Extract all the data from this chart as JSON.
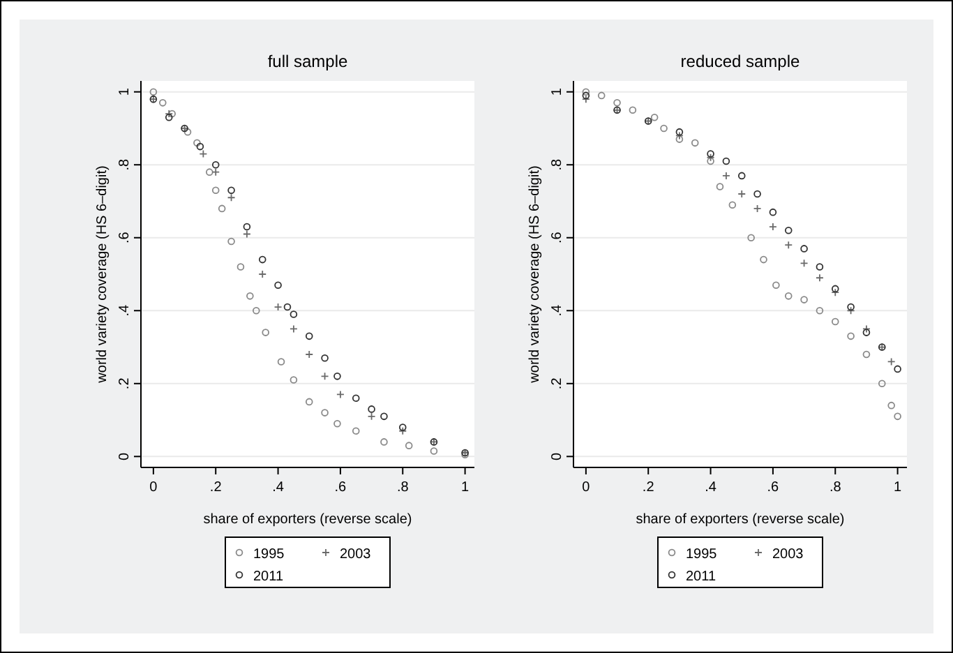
{
  "chart_data": [
    {
      "type": "scatter",
      "title": "full sample",
      "xlabel": "share of exporters (reverse scale)",
      "ylabel": "world variety coverage (HS 6–digit)",
      "xlim": [
        -0.04,
        1.03
      ],
      "ylim": [
        -0.03,
        1.03
      ],
      "xticks": [
        {
          "value": 0,
          "label": "0"
        },
        {
          "value": 0.2,
          "label": ".2"
        },
        {
          "value": 0.4,
          "label": ".4"
        },
        {
          "value": 0.6,
          "label": ".6"
        },
        {
          "value": 0.8,
          "label": ".8"
        },
        {
          "value": 1,
          "label": "1"
        }
      ],
      "yticks": [
        {
          "value": 0,
          "label": "0"
        },
        {
          "value": 0.2,
          "label": ".2"
        },
        {
          "value": 0.4,
          "label": ".4"
        },
        {
          "value": 0.6,
          "label": ".6"
        },
        {
          "value": 0.8,
          "label": ".8"
        },
        {
          "value": 1,
          "label": "1"
        }
      ],
      "grid": "y",
      "legend": "bottom",
      "series": [
        {
          "name": "1995",
          "color": "#8a8a8a",
          "marker": "circle",
          "x": [
            0,
            0.03,
            0.06,
            0.11,
            0.14,
            0.18,
            0.2,
            0.22,
            0.25,
            0.28,
            0.31,
            0.33,
            0.36,
            0.41,
            0.45,
            0.5,
            0.55,
            0.59,
            0.65,
            0.74,
            0.82,
            0.9,
            1
          ],
          "values": [
            1,
            0.97,
            0.94,
            0.89,
            0.86,
            0.78,
            0.73,
            0.68,
            0.59,
            0.52,
            0.44,
            0.4,
            0.34,
            0.26,
            0.21,
            0.15,
            0.12,
            0.09,
            0.07,
            0.04,
            0.03,
            0.015,
            0.005
          ]
        },
        {
          "name": "2003",
          "color": "#6a6a6a",
          "marker": "cross",
          "x": [
            0,
            0.05,
            0.1,
            0.16,
            0.2,
            0.25,
            0.3,
            0.35,
            0.4,
            0.45,
            0.5,
            0.55,
            0.6,
            0.7,
            0.8,
            0.9,
            1
          ],
          "values": [
            0.98,
            0.94,
            0.9,
            0.83,
            0.78,
            0.71,
            0.61,
            0.5,
            0.41,
            0.35,
            0.28,
            0.22,
            0.17,
            0.11,
            0.07,
            0.04,
            0.01
          ]
        },
        {
          "name": "2011",
          "color": "#333333",
          "marker": "circle",
          "x": [
            0,
            0.05,
            0.1,
            0.15,
            0.2,
            0.25,
            0.3,
            0.35,
            0.4,
            0.43,
            0.45,
            0.5,
            0.55,
            0.59,
            0.65,
            0.7,
            0.74,
            0.8,
            0.9,
            1
          ],
          "values": [
            0.98,
            0.93,
            0.9,
            0.85,
            0.8,
            0.73,
            0.63,
            0.54,
            0.47,
            0.41,
            0.39,
            0.33,
            0.27,
            0.22,
            0.16,
            0.13,
            0.11,
            0.08,
            0.04,
            0.01
          ]
        }
      ]
    },
    {
      "type": "scatter",
      "title": "reduced sample",
      "xlabel": "share of exporters (reverse scale)",
      "ylabel": "world variety coverage (HS 6–digit)",
      "xlim": [
        -0.04,
        1.03
      ],
      "ylim": [
        -0.03,
        1.03
      ],
      "xticks": [
        {
          "value": 0,
          "label": "0"
        },
        {
          "value": 0.2,
          "label": ".2"
        },
        {
          "value": 0.4,
          "label": ".4"
        },
        {
          "value": 0.6,
          "label": ".6"
        },
        {
          "value": 0.8,
          "label": ".8"
        },
        {
          "value": 1,
          "label": "1"
        }
      ],
      "yticks": [
        {
          "value": 0,
          "label": "0"
        },
        {
          "value": 0.2,
          "label": ".2"
        },
        {
          "value": 0.4,
          "label": ".4"
        },
        {
          "value": 0.6,
          "label": ".6"
        },
        {
          "value": 0.8,
          "label": ".8"
        },
        {
          "value": 1,
          "label": "1"
        }
      ],
      "grid": "y",
      "legend": "bottom",
      "series": [
        {
          "name": "1995",
          "color": "#8a8a8a",
          "marker": "circle",
          "x": [
            0,
            0.05,
            0.1,
            0.15,
            0.22,
            0.25,
            0.3,
            0.35,
            0.4,
            0.43,
            0.47,
            0.53,
            0.57,
            0.61,
            0.65,
            0.7,
            0.75,
            0.8,
            0.85,
            0.9,
            0.95,
            0.98,
            1
          ],
          "values": [
            1,
            0.99,
            0.97,
            0.95,
            0.93,
            0.9,
            0.87,
            0.86,
            0.81,
            0.74,
            0.69,
            0.6,
            0.54,
            0.47,
            0.44,
            0.43,
            0.4,
            0.37,
            0.33,
            0.28,
            0.2,
            0.14,
            0.11
          ]
        },
        {
          "name": "2003",
          "color": "#6a6a6a",
          "marker": "cross",
          "x": [
            0,
            0.1,
            0.2,
            0.3,
            0.4,
            0.45,
            0.5,
            0.55,
            0.6,
            0.65,
            0.7,
            0.75,
            0.8,
            0.85,
            0.9,
            0.95,
            0.98
          ],
          "values": [
            0.98,
            0.95,
            0.92,
            0.88,
            0.82,
            0.77,
            0.72,
            0.68,
            0.63,
            0.58,
            0.53,
            0.49,
            0.45,
            0.4,
            0.35,
            0.3,
            0.26
          ]
        },
        {
          "name": "2011",
          "color": "#333333",
          "marker": "circle",
          "x": [
            0,
            0.1,
            0.2,
            0.3,
            0.4,
            0.45,
            0.5,
            0.55,
            0.6,
            0.65,
            0.7,
            0.75,
            0.8,
            0.85,
            0.9,
            0.95,
            1
          ],
          "values": [
            0.99,
            0.95,
            0.92,
            0.89,
            0.83,
            0.81,
            0.77,
            0.72,
            0.67,
            0.62,
            0.57,
            0.52,
            0.46,
            0.41,
            0.34,
            0.3,
            0.24
          ]
        }
      ]
    }
  ]
}
